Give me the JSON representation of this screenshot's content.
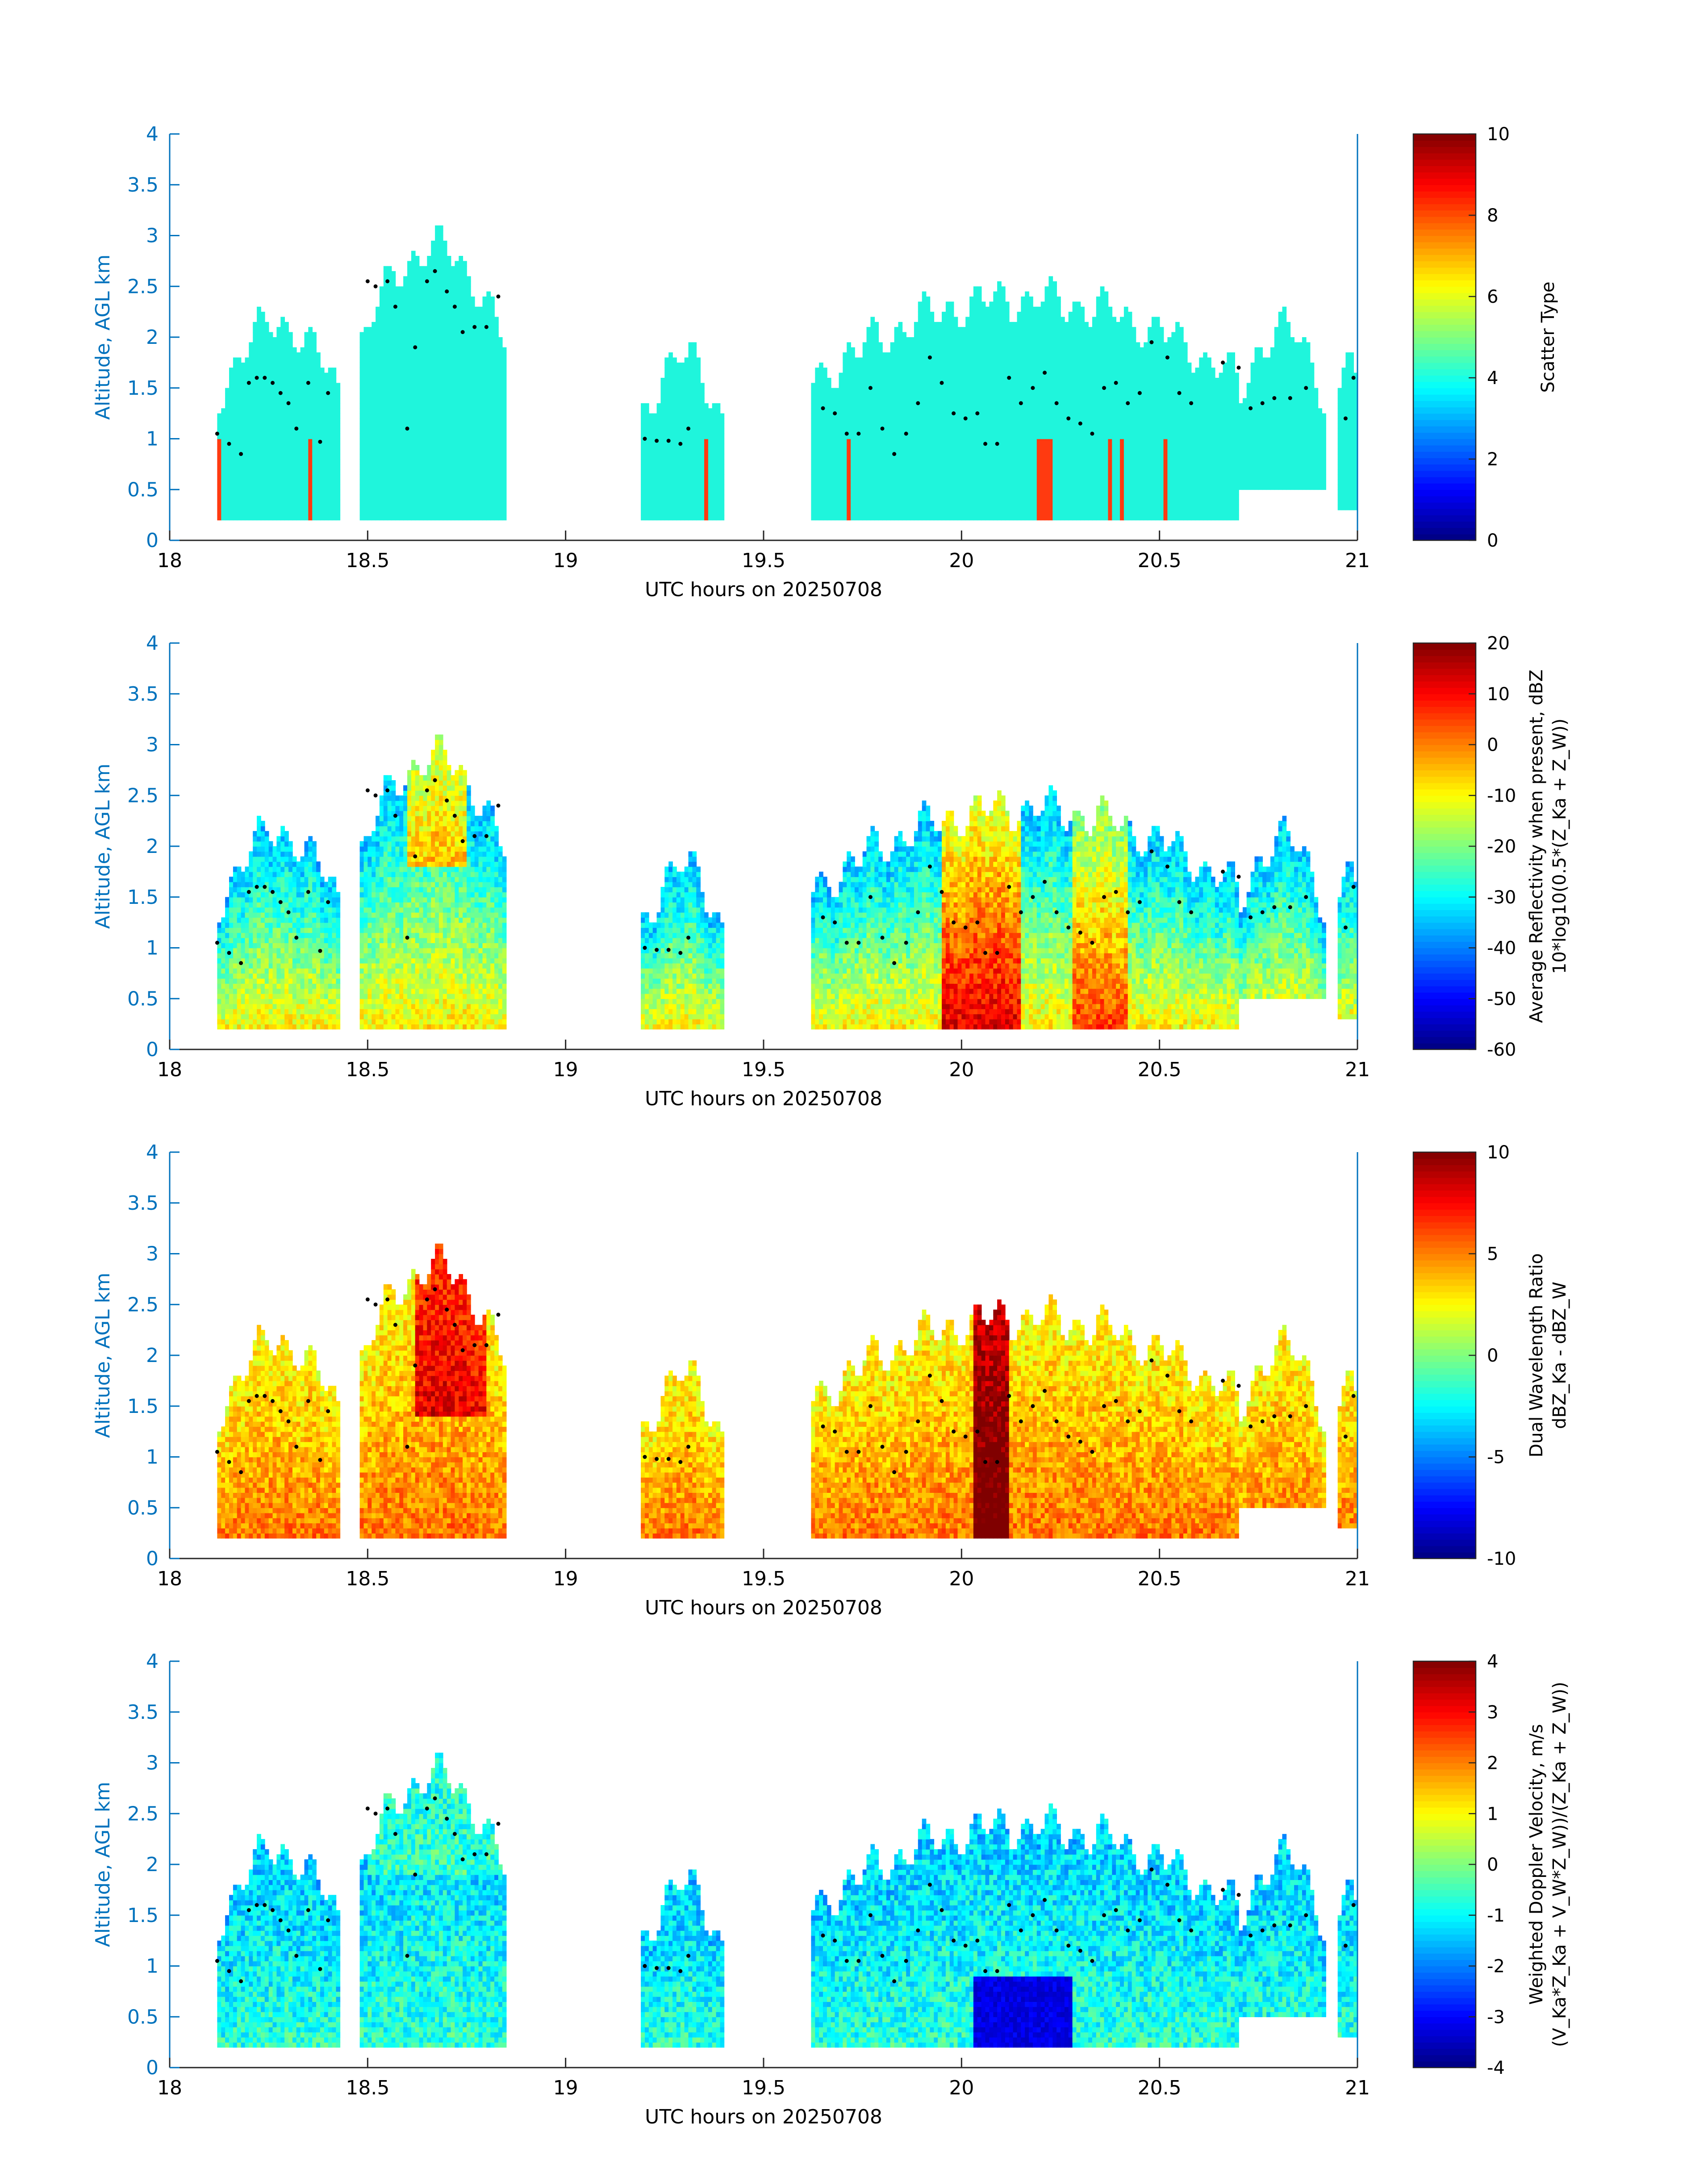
{
  "colors": {
    "axis": "#0072bd",
    "text": "#262626",
    "panel_text": "#000000",
    "dot": "#000000",
    "scatter_cloud": "#1ff5dc",
    "scatter_other": "#ff3a10"
  },
  "colormap": "jet",
  "chart_data": [
    {
      "type": "heatmap",
      "title": "",
      "xlabel": "UTC hours on 20250708",
      "ylabel": "Altitude, AGL km",
      "xlim": [
        18,
        21
      ],
      "ylim": [
        0,
        4
      ],
      "x_ticks": [
        "18",
        "18.5",
        "19",
        "19.5",
        "20",
        "20.5",
        "21"
      ],
      "y_ticks": [
        "0",
        "0.5",
        "1",
        "1.5",
        "2",
        "2.5",
        "3",
        "3.5",
        "4"
      ],
      "colorbar": {
        "label_lines": [
          "Scatter Type"
        ],
        "clim": [
          0,
          10
        ],
        "ticks": [
          "0",
          "2",
          "4",
          "6",
          "8",
          "10"
        ]
      },
      "field": "scatter_type",
      "field_values": {
        "cloud": 4,
        "other": 9
      }
    },
    {
      "type": "heatmap",
      "title": "",
      "xlabel": "UTC hours on 20250708",
      "ylabel": "Altitude, AGL km",
      "xlim": [
        18,
        21
      ],
      "ylim": [
        0,
        4
      ],
      "x_ticks": [
        "18",
        "18.5",
        "19",
        "19.5",
        "20",
        "20.5",
        "21"
      ],
      "y_ticks": [
        "0",
        "0.5",
        "1",
        "1.5",
        "2",
        "2.5",
        "3",
        "3.5",
        "4"
      ],
      "colorbar": {
        "label_lines": [
          "Average Reflectivity when present, dBZ",
          "10*log10(0.5*(Z_Ka + Z_W))"
        ],
        "clim": [
          -60,
          20
        ],
        "ticks": [
          "-60",
          "-50",
          "-40",
          "-30",
          "-20",
          "-10",
          "0",
          "10",
          "20"
        ]
      },
      "field": "reflectivity_dbz"
    },
    {
      "type": "heatmap",
      "title": "",
      "xlabel": "UTC hours on 20250708",
      "ylabel": "Altitude, AGL km",
      "xlim": [
        18,
        21
      ],
      "ylim": [
        0,
        4
      ],
      "x_ticks": [
        "18",
        "18.5",
        "19",
        "19.5",
        "20",
        "20.5",
        "21"
      ],
      "y_ticks": [
        "0",
        "0.5",
        "1",
        "1.5",
        "2",
        "2.5",
        "3",
        "3.5",
        "4"
      ],
      "colorbar": {
        "label_lines": [
          "Dual Wavelength Ratio",
          "dBZ_Ka - dBZ_W"
        ],
        "clim": [
          -10,
          10
        ],
        "ticks": [
          "-10",
          "-5",
          "0",
          "5",
          "10"
        ]
      },
      "field": "dwr_db"
    },
    {
      "type": "heatmap",
      "title": "",
      "xlabel": "UTC hours on 20250708",
      "ylabel": "Altitude, AGL km",
      "xlim": [
        18,
        21
      ],
      "ylim": [
        0,
        4
      ],
      "x_ticks": [
        "18",
        "18.5",
        "19",
        "19.5",
        "20",
        "20.5",
        "21"
      ],
      "y_ticks": [
        "0",
        "0.5",
        "1",
        "1.5",
        "2",
        "2.5",
        "3",
        "3.5",
        "4"
      ],
      "colorbar": {
        "label_lines": [
          "Weighted Doppler Velocity, m/s",
          "(V_Ka*Z_Ka + V_W*Z_W))/(Z_Ka + Z_W))"
        ],
        "clim": [
          -4,
          4
        ],
        "ticks": [
          "-4",
          "-3",
          "-2",
          "-1",
          "0",
          "1",
          "2",
          "3",
          "4"
        ]
      },
      "field": "doppler_velocity_ms"
    }
  ],
  "cloud_envelope": {
    "description_units": "UTC hours / km AGL",
    "segments": [
      {
        "x": [
          18.12,
          18.43
        ],
        "bottom": 0.2,
        "top_peak": 2.1
      },
      {
        "x": [
          18.48,
          18.85
        ],
        "bottom": 0.2,
        "top_peak": 2.85
      },
      {
        "x": [
          19.19,
          19.4
        ],
        "bottom": 0.2,
        "top_peak": 1.75
      },
      {
        "x": [
          19.62,
          20.7
        ],
        "bottom": 0.2,
        "top_peak": 2.35
      },
      {
        "x": [
          20.7,
          20.92
        ],
        "bottom": 0.5,
        "top_peak": 2.05
      },
      {
        "x": [
          20.95,
          21.0
        ],
        "bottom": 0.3,
        "top_peak": 1.85
      }
    ],
    "base_height_dots": [
      [
        18.12,
        1.05
      ],
      [
        18.15,
        0.95
      ],
      [
        18.18,
        0.85
      ],
      [
        18.2,
        1.55
      ],
      [
        18.22,
        1.6
      ],
      [
        18.24,
        1.6
      ],
      [
        18.26,
        1.55
      ],
      [
        18.28,
        1.45
      ],
      [
        18.3,
        1.35
      ],
      [
        18.32,
        1.1
      ],
      [
        18.35,
        1.55
      ],
      [
        18.38,
        0.97
      ],
      [
        18.4,
        1.45
      ],
      [
        18.5,
        2.55
      ],
      [
        18.52,
        2.5
      ],
      [
        18.55,
        2.55
      ],
      [
        18.57,
        2.3
      ],
      [
        18.6,
        1.1
      ],
      [
        18.62,
        1.9
      ],
      [
        18.65,
        2.55
      ],
      [
        18.67,
        2.65
      ],
      [
        18.7,
        2.45
      ],
      [
        18.72,
        2.3
      ],
      [
        18.74,
        2.05
      ],
      [
        18.77,
        2.1
      ],
      [
        18.8,
        2.1
      ],
      [
        18.83,
        2.4
      ],
      [
        19.2,
        1.0
      ],
      [
        19.23,
        0.98
      ],
      [
        19.26,
        0.98
      ],
      [
        19.29,
        0.95
      ],
      [
        19.31,
        1.1
      ],
      [
        19.65,
        1.3
      ],
      [
        19.68,
        1.25
      ],
      [
        19.71,
        1.05
      ],
      [
        19.74,
        1.05
      ],
      [
        19.77,
        1.5
      ],
      [
        19.8,
        1.1
      ],
      [
        19.83,
        0.85
      ],
      [
        19.86,
        1.05
      ],
      [
        19.89,
        1.35
      ],
      [
        19.92,
        1.8
      ],
      [
        19.95,
        1.55
      ],
      [
        19.98,
        1.25
      ],
      [
        20.01,
        1.2
      ],
      [
        20.04,
        1.25
      ],
      [
        20.06,
        0.95
      ],
      [
        20.09,
        0.95
      ],
      [
        20.12,
        1.6
      ],
      [
        20.15,
        1.35
      ],
      [
        20.18,
        1.5
      ],
      [
        20.21,
        1.65
      ],
      [
        20.24,
        1.35
      ],
      [
        20.27,
        1.2
      ],
      [
        20.3,
        1.15
      ],
      [
        20.33,
        1.05
      ],
      [
        20.36,
        1.5
      ],
      [
        20.39,
        1.55
      ],
      [
        20.42,
        1.35
      ],
      [
        20.45,
        1.45
      ],
      [
        20.48,
        1.95
      ],
      [
        20.52,
        1.8
      ],
      [
        20.55,
        1.45
      ],
      [
        20.58,
        1.35
      ],
      [
        20.66,
        1.75
      ],
      [
        20.7,
        1.7
      ],
      [
        20.73,
        1.3
      ],
      [
        20.76,
        1.35
      ],
      [
        20.79,
        1.4
      ],
      [
        20.83,
        1.4
      ],
      [
        20.87,
        1.5
      ],
      [
        20.97,
        1.2
      ],
      [
        20.99,
        1.6
      ]
    ]
  }
}
